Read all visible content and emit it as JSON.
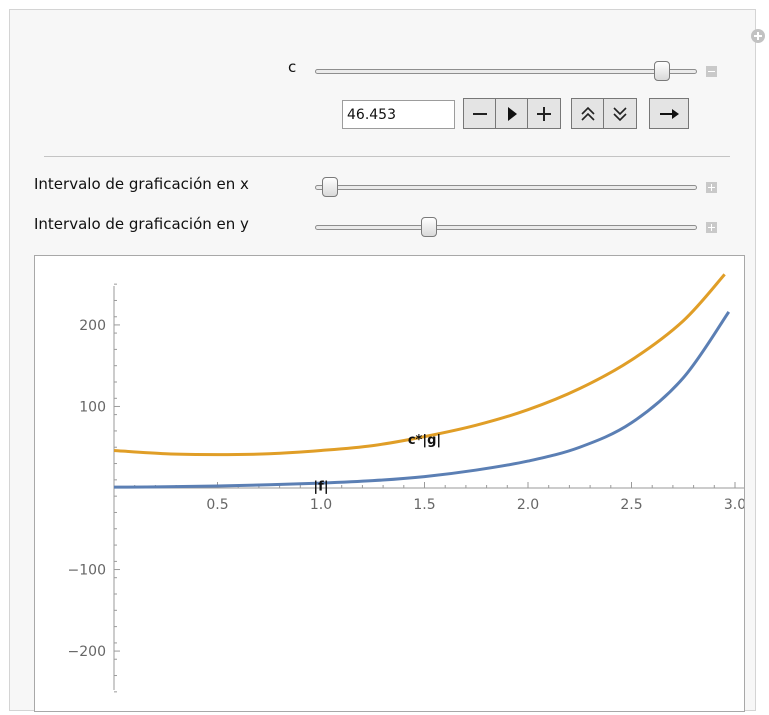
{
  "controls": {
    "c_label": "c",
    "c_value": "46.453",
    "c_slider_fraction": 0.93,
    "x_interval_label": "Intervalo de graficación en x",
    "x_interval_fraction": 0.02,
    "y_interval_label": "Intervalo de graficación en y",
    "y_interval_fraction": 0.29
  },
  "icons": {
    "corner": "plus-circle-icon",
    "collapse": "minus-square-icon",
    "expand": "plus-square-icon",
    "anim_buttons": [
      "minus-icon",
      "play-icon",
      "plus-icon",
      "faster-icon",
      "slower-icon",
      "direction-arrow-icon"
    ]
  },
  "colors": {
    "orange_curve": "#e09e27",
    "blue_curve": "#5b7fb4"
  },
  "chart_data": {
    "type": "line",
    "xlim": [
      0,
      3.0
    ],
    "ylim": [
      -260,
      260
    ],
    "x_ticks": [
      "0.5",
      "1.0",
      "1.5",
      "2.0",
      "2.5",
      "3.0"
    ],
    "y_ticks": [
      "200",
      "100",
      "−100",
      "−200"
    ],
    "series": [
      {
        "name": "c*|g|",
        "color": "#e09e27",
        "label_at": [
          1.5,
          60
        ],
        "x": [
          0,
          0.25,
          0.5,
          0.75,
          1.0,
          1.25,
          1.5,
          1.75,
          2.0,
          2.25,
          2.5,
          2.75,
          2.95
        ],
        "y": [
          46,
          42,
          41,
          42,
          46,
          52,
          63,
          77,
          96,
          122,
          157,
          205,
          262
        ]
      },
      {
        "name": "|f|",
        "color": "#5b7fb4",
        "label_at": [
          1.0,
          3
        ],
        "x": [
          0,
          0.25,
          0.5,
          0.75,
          1.0,
          1.25,
          1.5,
          1.75,
          2.0,
          2.25,
          2.5,
          2.75,
          2.97
        ],
        "y": [
          1,
          1.5,
          2.5,
          4,
          6,
          9,
          14,
          22,
          33,
          50,
          80,
          135,
          216
        ]
      }
    ]
  }
}
